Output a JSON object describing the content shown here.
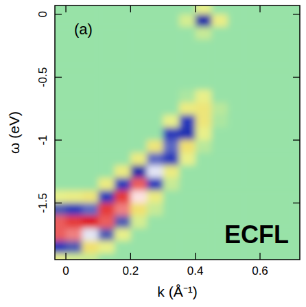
{
  "chart_data": {
    "type": "heatmap",
    "x_label": "k (Å⁻¹)",
    "y_label": "ω (eV)",
    "annotations": [
      "(a)",
      "ECFL"
    ],
    "xlim": [
      -0.034,
      0.723
    ],
    "ylim": [
      -1.95,
      0.07
    ],
    "xticks": [
      0,
      0.2,
      0.4,
      0.6
    ],
    "yticks": [
      0,
      -0.5,
      -1,
      -1.5
    ],
    "zlim": [
      0,
      1
    ],
    "x_edges": [
      -0.05,
      0,
      0.05,
      0.1,
      0.15,
      0.2,
      0.25,
      0.3,
      0.35,
      0.4,
      0.45,
      0.5,
      0.55,
      0.6,
      0.65,
      0.7,
      0.75
    ],
    "y_edges": [
      0.1,
      0,
      -0.1,
      -0.2,
      -0.3,
      -0.4,
      -0.5,
      -0.6,
      -0.7,
      -0.8,
      -0.9,
      -1,
      -1.1,
      -1.2,
      -1.3,
      -1.4,
      -1.5,
      -1.6,
      -1.7,
      -1.8,
      -1.9,
      -2
    ],
    "cells": [
      [
        0.03,
        0.03,
        0.03,
        0.03,
        0.03,
        0.03,
        0.03,
        0.03,
        0.03,
        0.15,
        0.03,
        0.03,
        0.03,
        0.03,
        0.03,
        0.03
      ],
      [
        0.03,
        0.03,
        0.03,
        0.03,
        0.03,
        0.03,
        0.03,
        0.03,
        0.12,
        0.55,
        0.18,
        0.03,
        0.03,
        0.03,
        0.03,
        0.03
      ],
      [
        0.03,
        0.03,
        0.03,
        0.03,
        0.03,
        0.03,
        0.03,
        0.03,
        0.03,
        0.1,
        0.03,
        0.03,
        0.03,
        0.03,
        0.03,
        0.03
      ],
      [
        0.03,
        0.03,
        0.03,
        0.03,
        0.03,
        0.03,
        0.03,
        0.03,
        0.03,
        0.03,
        0.03,
        0.03,
        0.03,
        0.03,
        0.03,
        0.03
      ],
      [
        0.03,
        0.03,
        0.03,
        0.03,
        0.03,
        0.03,
        0.03,
        0.03,
        0.03,
        0.03,
        0.03,
        0.03,
        0.03,
        0.03,
        0.03,
        0.03
      ],
      [
        0.03,
        0.03,
        0.03,
        0.03,
        0.03,
        0.03,
        0.03,
        0.03,
        0.03,
        0.03,
        0.03,
        0.03,
        0.03,
        0.03,
        0.03,
        0.03
      ],
      [
        0.03,
        0.03,
        0.03,
        0.03,
        0.03,
        0.03,
        0.03,
        0.03,
        0.03,
        0.03,
        0.03,
        0.03,
        0.03,
        0.03,
        0.03,
        0.03
      ],
      [
        0.03,
        0.03,
        0.03,
        0.03,
        0.03,
        0.03,
        0.03,
        0.03,
        0.06,
        0.15,
        0.03,
        0.03,
        0.03,
        0.03,
        0.03,
        0.03
      ],
      [
        0.03,
        0.03,
        0.03,
        0.03,
        0.03,
        0.03,
        0.03,
        0.03,
        0.2,
        0.25,
        0.08,
        0.03,
        0.03,
        0.03,
        0.03,
        0.03
      ],
      [
        0.03,
        0.03,
        0.03,
        0.03,
        0.03,
        0.03,
        0.03,
        0.15,
        0.45,
        0.25,
        0.06,
        0.03,
        0.03,
        0.03,
        0.03,
        0.03
      ],
      [
        0.03,
        0.03,
        0.03,
        0.03,
        0.03,
        0.03,
        0.03,
        0.45,
        0.5,
        0.15,
        0.03,
        0.03,
        0.03,
        0.03,
        0.03,
        0.03
      ],
      [
        0.03,
        0.03,
        0.03,
        0.03,
        0.03,
        0.03,
        0.25,
        0.6,
        0.3,
        0.08,
        0.03,
        0.03,
        0.03,
        0.03,
        0.03,
        0.03
      ],
      [
        0.03,
        0.03,
        0.03,
        0.03,
        0.03,
        0.2,
        0.6,
        0.45,
        0.15,
        0.03,
        0.03,
        0.03,
        0.03,
        0.03,
        0.03,
        0.03
      ],
      [
        0.03,
        0.03,
        0.03,
        0.03,
        0.2,
        0.55,
        0.7,
        0.2,
        0.03,
        0.03,
        0.03,
        0.03,
        0.03,
        0.03,
        0.03,
        0.03
      ],
      [
        0.03,
        0.03,
        0.03,
        0.2,
        0.45,
        0.9,
        0.45,
        0.1,
        0.03,
        0.03,
        0.03,
        0.03,
        0.03,
        0.03,
        0.03,
        0.03
      ],
      [
        0.15,
        0.18,
        0.25,
        0.45,
        0.95,
        0.75,
        0.2,
        0.03,
        0.03,
        0.03,
        0.03,
        0.03,
        0.03,
        0.03,
        0.03,
        0.03
      ],
      [
        0.4,
        0.45,
        0.6,
        0.95,
        0.85,
        0.3,
        0.1,
        0.03,
        0.03,
        0.03,
        0.03,
        0.03,
        0.03,
        0.03,
        0.03,
        0.03
      ],
      [
        0.9,
        0.95,
        1.0,
        0.9,
        0.4,
        0.12,
        0.03,
        0.03,
        0.03,
        0.03,
        0.03,
        0.03,
        0.03,
        0.03,
        0.03,
        0.03
      ],
      [
        0.9,
        0.85,
        0.7,
        0.4,
        0.15,
        0.03,
        0.03,
        0.03,
        0.03,
        0.03,
        0.03,
        0.03,
        0.03,
        0.03,
        0.03,
        0.03
      ],
      [
        0.45,
        0.4,
        0.3,
        0.15,
        0.03,
        0.03,
        0.03,
        0.03,
        0.03,
        0.03,
        0.03,
        0.03,
        0.03,
        0.03,
        0.03,
        0.03
      ],
      [
        0.15,
        0.12,
        0.1,
        0.03,
        0.03,
        0.03,
        0.03,
        0.03,
        0.03,
        0.03,
        0.03,
        0.03,
        0.03,
        0.03,
        0.03,
        0.03
      ]
    ]
  }
}
